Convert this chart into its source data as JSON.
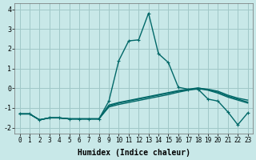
{
  "xlabel": "Humidex (Indice chaleur)",
  "bg_color": "#c8e8e8",
  "grid_color": "#a0c8c8",
  "line_color": "#006868",
  "xlim": [
    -0.5,
    23.5
  ],
  "ylim": [
    -2.3,
    4.3
  ],
  "yticks": [
    -2,
    -1,
    0,
    1,
    2,
    3,
    4
  ],
  "xticks": [
    0,
    1,
    2,
    3,
    4,
    5,
    6,
    7,
    8,
    9,
    10,
    11,
    12,
    13,
    14,
    15,
    16,
    17,
    18,
    19,
    20,
    21,
    22,
    23
  ],
  "line1_x": [
    0,
    1,
    2,
    3,
    4,
    5,
    6,
    7,
    8,
    9,
    10,
    11,
    12,
    13,
    14,
    15,
    16,
    17,
    18,
    19,
    20,
    21,
    22,
    23
  ],
  "line1_y": [
    -1.3,
    -1.3,
    -1.6,
    -1.5,
    -1.5,
    -1.55,
    -1.55,
    -1.55,
    -1.55,
    -0.65,
    1.4,
    2.4,
    2.45,
    3.8,
    1.75,
    1.3,
    0.05,
    -0.05,
    -0.05,
    -0.55,
    -0.65,
    -1.2,
    -1.85,
    -1.25
  ],
  "line2_x": [
    0,
    1,
    2,
    3,
    4,
    5,
    6,
    7,
    8,
    9,
    10,
    11,
    12,
    13,
    14,
    15,
    16,
    17,
    18,
    19,
    20,
    21,
    22,
    23
  ],
  "line2_y": [
    -1.3,
    -1.3,
    -1.6,
    -1.5,
    -1.5,
    -1.55,
    -1.55,
    -1.55,
    -1.55,
    -0.9,
    -0.75,
    -0.65,
    -0.55,
    -0.45,
    -0.35,
    -0.25,
    -0.15,
    -0.08,
    0.0,
    -0.05,
    -0.15,
    -0.35,
    -0.5,
    -0.6
  ],
  "line3_x": [
    0,
    1,
    2,
    3,
    4,
    5,
    6,
    7,
    8,
    9,
    10,
    11,
    12,
    13,
    14,
    15,
    16,
    17,
    18,
    19,
    20,
    21,
    22,
    23
  ],
  "line3_y": [
    -1.3,
    -1.3,
    -1.6,
    -1.5,
    -1.5,
    -1.55,
    -1.55,
    -1.55,
    -1.55,
    -0.85,
    -0.72,
    -0.62,
    -0.52,
    -0.42,
    -0.32,
    -0.22,
    -0.12,
    -0.05,
    0.02,
    -0.08,
    -0.2,
    -0.4,
    -0.55,
    -0.7
  ],
  "line4_x": [
    0,
    1,
    2,
    3,
    4,
    5,
    6,
    7,
    8,
    9,
    10,
    11,
    12,
    13,
    14,
    15,
    16,
    17,
    18,
    19,
    20,
    21,
    22,
    23
  ],
  "line4_y": [
    -1.3,
    -1.3,
    -1.6,
    -1.5,
    -1.5,
    -1.55,
    -1.55,
    -1.55,
    -1.55,
    -0.95,
    -0.82,
    -0.72,
    -0.62,
    -0.52,
    -0.42,
    -0.32,
    -0.2,
    -0.1,
    -0.02,
    -0.1,
    -0.25,
    -0.45,
    -0.6,
    -0.75
  ]
}
